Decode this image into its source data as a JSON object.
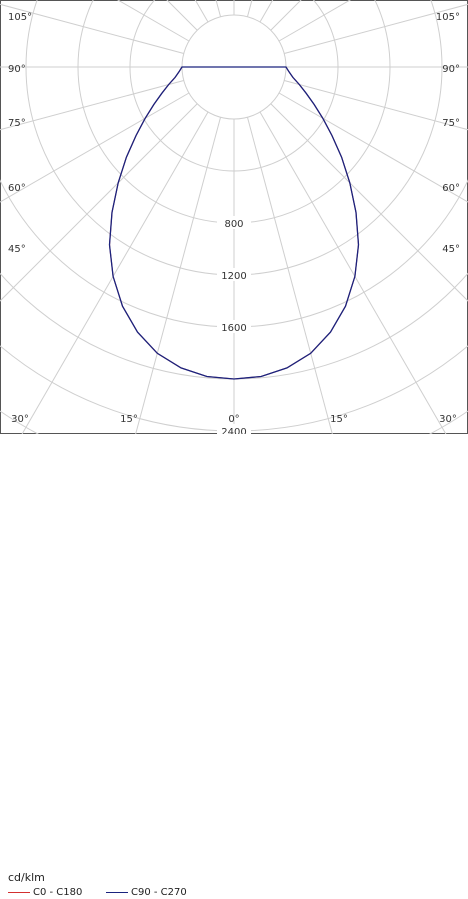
{
  "chart_data": {
    "type": "polar",
    "unit": "cd/klm",
    "radial_ticks": [
      800,
      1200,
      1600,
      2400
    ],
    "radial_max": 2800,
    "angle_labels_left": [
      "105°",
      "90°",
      "75°",
      "60°",
      "45°",
      "30°",
      "15°",
      "0°"
    ],
    "angle_labels_right": [
      "105°",
      "90°",
      "75°",
      "60°",
      "45°",
      "30°",
      "15°"
    ],
    "grid": true,
    "legend_position": "bottom-left",
    "series": [
      {
        "name": "C0 - C180",
        "color": "#d32f2f",
        "angles_deg": [
          0,
          5,
          10,
          15,
          20,
          25,
          30,
          35,
          40,
          45,
          50,
          55,
          60,
          65,
          70,
          75,
          80,
          85,
          90
        ],
        "values": [
          2000,
          1990,
          1950,
          1880,
          1770,
          1630,
          1460,
          1270,
          1060,
          860,
          680,
          520,
          390,
          280,
          190,
          120,
          60,
          25,
          0
        ]
      },
      {
        "name": "C90 - C270",
        "color": "#1a237e",
        "angles_deg": [
          0,
          5,
          10,
          15,
          20,
          25,
          30,
          35,
          40,
          45,
          50,
          55,
          60,
          65,
          70,
          75,
          80,
          85,
          90
        ],
        "values": [
          2000,
          1990,
          1950,
          1880,
          1770,
          1630,
          1460,
          1270,
          1060,
          860,
          680,
          520,
          390,
          280,
          190,
          120,
          60,
          25,
          0
        ]
      }
    ]
  }
}
